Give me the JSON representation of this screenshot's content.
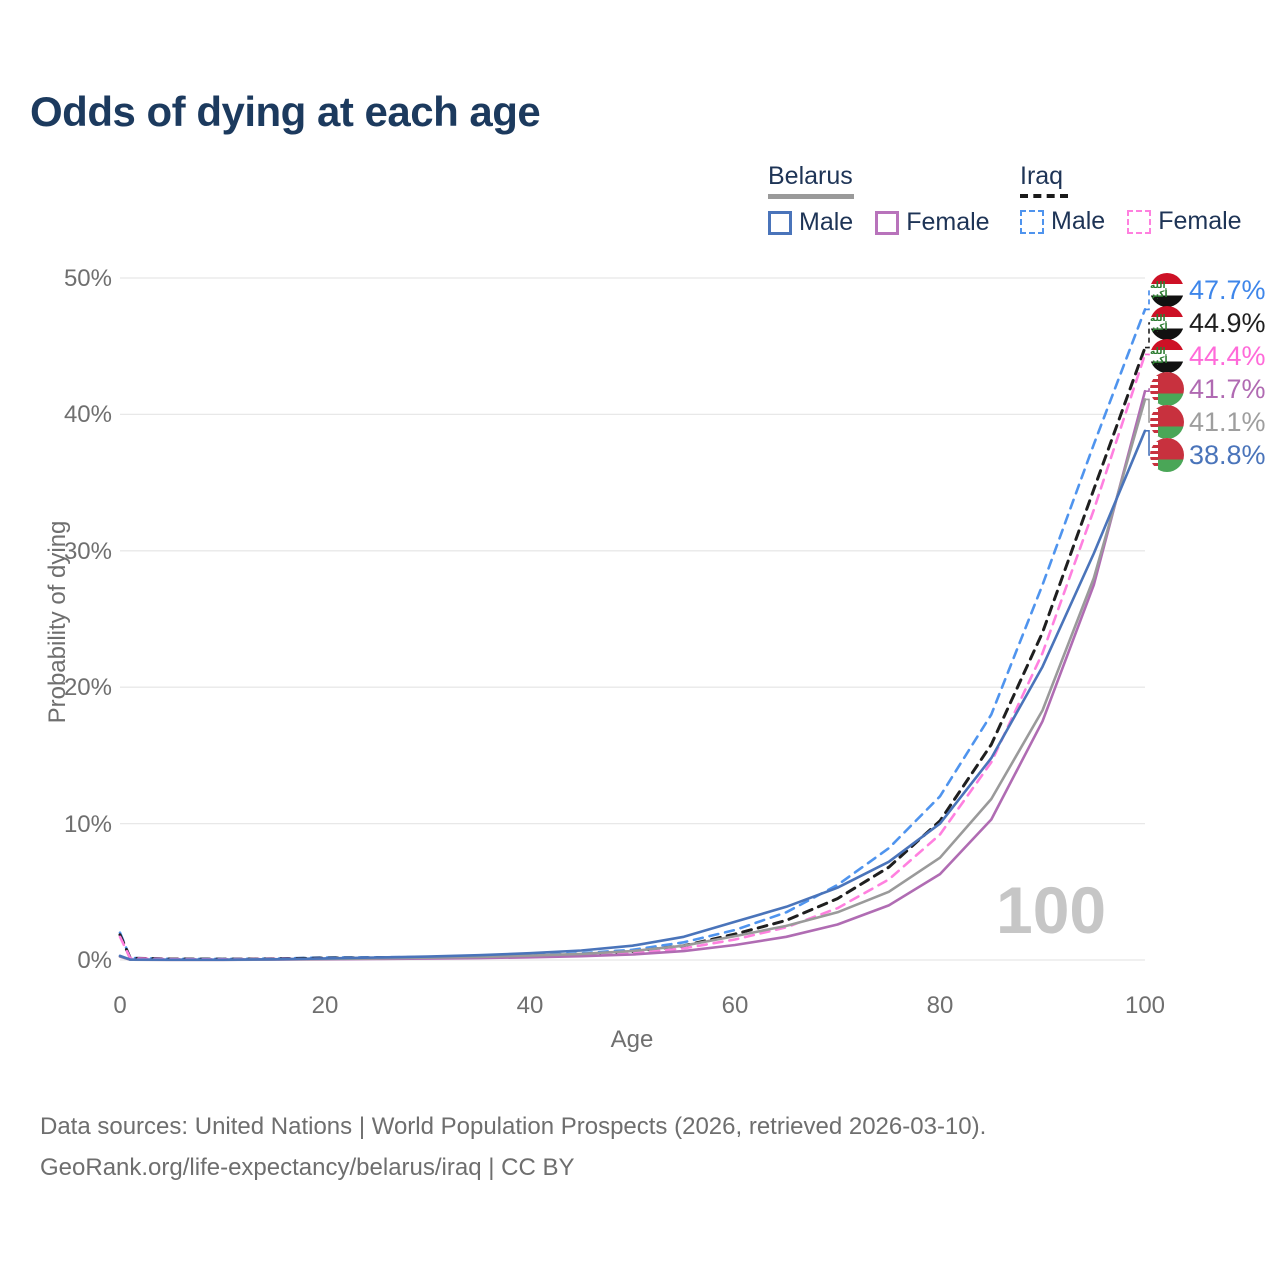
{
  "title": "Odds of dying at each age",
  "legend": {
    "groups": [
      {
        "label": "Belarus",
        "line_style": "solid",
        "color": "#9a9a9a",
        "entries": [
          {
            "label": "Male",
            "color": "#4a74ba",
            "dash": false
          },
          {
            "label": "Female",
            "color": "#b873bb",
            "dash": false
          }
        ]
      },
      {
        "label": "Iraq",
        "line_style": "dashed",
        "color": "#1a1a1a",
        "entries": [
          {
            "label": "Male",
            "color": "#4f94ee",
            "dash": true
          },
          {
            "label": "Female",
            "color": "#ff80df",
            "dash": true
          }
        ]
      }
    ]
  },
  "chart_data": {
    "type": "line",
    "title": "Odds of dying at each age",
    "xlabel": "Age",
    "ylabel": "Probability of dying",
    "xlim": [
      0,
      100
    ],
    "ylim": [
      0,
      50
    ],
    "x_ticks": [
      0,
      20,
      40,
      60,
      80,
      100
    ],
    "x_tick_labels": [
      "0",
      "20",
      "40",
      "60",
      "80",
      "100"
    ],
    "y_ticks": [
      0,
      10,
      20,
      30,
      40,
      50
    ],
    "y_tick_labels": [
      "0%",
      "10%",
      "20%",
      "30%",
      "40%",
      "50%"
    ],
    "grid": "horizontal",
    "legend_position": "top-right",
    "x": [
      0,
      1,
      5,
      10,
      15,
      20,
      25,
      30,
      35,
      40,
      45,
      50,
      55,
      60,
      65,
      70,
      75,
      80,
      85,
      90,
      95,
      100
    ],
    "series": [
      {
        "name": "Iraq Male",
        "country": "Iraq",
        "color": "#4f94ee",
        "dash": true,
        "end_label": "47.7%",
        "end_value": 47.7,
        "values": [
          2.0,
          0.15,
          0.08,
          0.07,
          0.1,
          0.18,
          0.2,
          0.22,
          0.28,
          0.35,
          0.5,
          0.75,
          1.3,
          2.2,
          3.5,
          5.5,
          8.2,
          12.0,
          18.0,
          27.5,
          37.8,
          47.7
        ]
      },
      {
        "name": "Iraq Both sexes",
        "country": "Iraq",
        "color": "#1f1f1f",
        "dash": true,
        "end_label": "44.9%",
        "end_value": 44.9,
        "values": [
          1.85,
          0.13,
          0.07,
          0.06,
          0.08,
          0.14,
          0.16,
          0.18,
          0.23,
          0.3,
          0.42,
          0.62,
          1.05,
          1.9,
          2.9,
          4.5,
          6.8,
          10.2,
          15.8,
          24.0,
          34.5,
          44.9
        ]
      },
      {
        "name": "Iraq Female",
        "country": "Iraq",
        "color": "#ff80df",
        "dash": true,
        "end_label": "44.4%",
        "end_value": 44.4,
        "values": [
          1.7,
          0.12,
          0.06,
          0.05,
          0.07,
          0.1,
          0.12,
          0.14,
          0.18,
          0.25,
          0.35,
          0.5,
          0.85,
          1.5,
          2.4,
          3.8,
          5.9,
          9.2,
          14.5,
          22.5,
          33.0,
          44.4
        ]
      },
      {
        "name": "Belarus Female",
        "country": "Belarus",
        "color": "#b06cb3",
        "dash": false,
        "end_label": "41.7%",
        "end_value": 41.7,
        "values": [
          0.25,
          0.02,
          0.012,
          0.012,
          0.03,
          0.05,
          0.07,
          0.1,
          0.14,
          0.2,
          0.28,
          0.4,
          0.65,
          1.1,
          1.7,
          2.6,
          4.0,
          6.3,
          10.3,
          17.5,
          27.5,
          41.7
        ]
      },
      {
        "name": "Belarus Both sexes",
        "country": "Belarus",
        "color": "#9a9a9a",
        "dash": false,
        "end_label": "41.1%",
        "end_value": 41.1,
        "values": [
          0.27,
          0.025,
          0.015,
          0.015,
          0.04,
          0.08,
          0.12,
          0.17,
          0.23,
          0.32,
          0.45,
          0.65,
          1.05,
          1.75,
          2.5,
          3.5,
          5.0,
          7.5,
          11.8,
          18.3,
          28.0,
          41.1
        ]
      },
      {
        "name": "Belarus Male",
        "country": "Belarus",
        "color": "#4a74ba",
        "dash": false,
        "end_label": "38.8%",
        "end_value": 38.8,
        "values": [
          0.3,
          0.03,
          0.02,
          0.02,
          0.05,
          0.12,
          0.18,
          0.25,
          0.35,
          0.5,
          0.7,
          1.05,
          1.7,
          2.8,
          3.9,
          5.3,
          7.2,
          10.0,
          14.8,
          21.5,
          29.8,
          38.8
        ]
      }
    ]
  },
  "end_labels": [
    {
      "value": "47.7%",
      "color": "#3e86ea",
      "flag": "iraq",
      "series": "Iraq Male"
    },
    {
      "value": "44.9%",
      "color": "#1f1f1f",
      "flag": "iraq",
      "series": "Iraq Both sexes"
    },
    {
      "value": "44.4%",
      "color": "#ff6ad9",
      "flag": "iraq",
      "series": "Iraq Female"
    },
    {
      "value": "41.7%",
      "color": "#b06ab2",
      "flag": "belarus",
      "series": "Belarus Female"
    },
    {
      "value": "41.1%",
      "color": "#9e9e9e",
      "flag": "belarus",
      "series": "Belarus Both sexes"
    },
    {
      "value": "38.8%",
      "color": "#4a74ba",
      "flag": "belarus",
      "series": "Belarus Male"
    }
  ],
  "flags": {
    "iraq_script": "الله أكبر"
  },
  "watermark": "100",
  "footer": {
    "line1": "Data sources: United Nations | World Population Prospects (2026, retrieved 2026-03-10).",
    "line2": "GeoRank.org/life-expectancy/belarus/iraq | CC BY"
  },
  "colors": {
    "title": "#1c3a5e",
    "axis_text": "#6f6f6f",
    "gridline": "#e8e8e8",
    "watermark": "#c6c6c6",
    "belarus_underline": "#9a9a9a",
    "iraq_underline": "#1a1a1a"
  }
}
